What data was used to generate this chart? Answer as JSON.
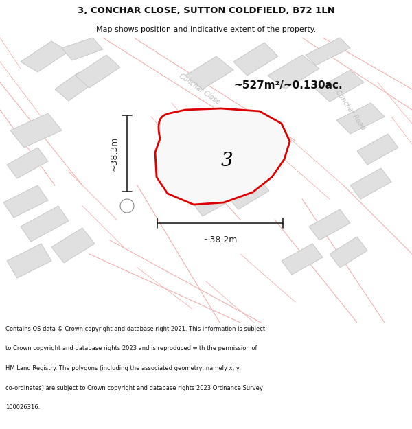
{
  "title_line1": "3, CONCHAR CLOSE, SUTTON COLDFIELD, B72 1LN",
  "title_line2": "Map shows position and indicative extent of the property.",
  "area_label": "~527m²/~0.130ac.",
  "plot_number": "3",
  "dim_width": "~38.2m",
  "dim_height": "~38.3m",
  "road_label1": "Conchar Close",
  "road_label2": "Conchar Road",
  "footer_lines": [
    "Contains OS data © Crown copyright and database right 2021. This information is subject",
    "to Crown copyright and database rights 2023 and is reproduced with the permission of",
    "HM Land Registry. The polygons (including the associated geometry, namely x, y",
    "co-ordinates) are subject to Crown copyright and database rights 2023 Ordnance Survey",
    "100026316."
  ],
  "bg_color": "#ffffff",
  "map_bg": "#f8f8f8",
  "plot_fill": "#f8f8f8",
  "plot_edge": "#dd0000",
  "other_plot_fill": "#e0e0e0",
  "other_plot_edge": "#c8c8c8",
  "road_line_color": "#f0b0b0",
  "dim_line_color": "#222222",
  "title_color": "#111111",
  "area_color": "#111111",
  "road_label_color": "#bbbbbb",
  "footer_color": "#111111"
}
